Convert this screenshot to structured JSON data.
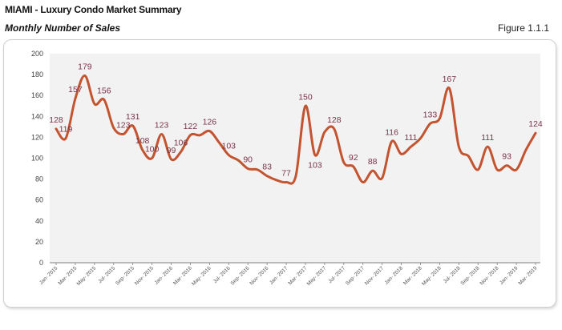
{
  "header": {
    "title": "MIAMI - Luxury Condo Market Summary",
    "subtitle": "Monthly Number of Sales",
    "figure": "Figure 1.1.1"
  },
  "chart_data": {
    "type": "line",
    "title": "Monthly Number of Sales",
    "xlabel": "",
    "ylabel": "",
    "ylim": [
      0,
      200
    ],
    "yticks": [
      0,
      20,
      40,
      60,
      80,
      100,
      120,
      140,
      160,
      180,
      200
    ],
    "grid": false,
    "line_color": "#c4532f",
    "label_color": "#7a3448",
    "plot_background": "#f2f2f2",
    "x_tick_labels": [
      "Jan- 2015",
      "Mar- 2015",
      "May- 2015",
      "Jul- 2015",
      "Sep- 2015",
      "Nov- 2015",
      "Jan- 2016",
      "Mar- 2016",
      "May- 2016",
      "Jul- 2016",
      "Sep- 2016",
      "Nov- 2016",
      "Jan- 2017",
      "Mar- 2017",
      "May- 2017",
      "Jul- 2017",
      "Sep- 2017",
      "Nov- 2017",
      "Jan- 2018",
      "Mar- 2018",
      "May- 2018",
      "Jul- 2018",
      "Sep- 2018",
      "Nov- 2018",
      "Jan- 2019",
      "Mar- 2019"
    ],
    "x": [
      "Jan-2015",
      "Feb-2015",
      "Mar-2015",
      "Apr-2015",
      "May-2015",
      "Jun-2015",
      "Jul-2015",
      "Aug-2015",
      "Sep-2015",
      "Oct-2015",
      "Nov-2015",
      "Dec-2015",
      "Jan-2016",
      "Feb-2016",
      "Mar-2016",
      "Apr-2016",
      "May-2016",
      "Jun-2016",
      "Jul-2016",
      "Aug-2016",
      "Sep-2016",
      "Oct-2016",
      "Nov-2016",
      "Dec-2016",
      "Jan-2017",
      "Feb-2017",
      "Mar-2017",
      "Apr-2017",
      "May-2017",
      "Jun-2017",
      "Jul-2017",
      "Aug-2017",
      "Sep-2017",
      "Oct-2017",
      "Nov-2017",
      "Dec-2017",
      "Jan-2018",
      "Feb-2018",
      "Mar-2018",
      "Apr-2018",
      "May-2018",
      "Jun-2018",
      "Jul-2018",
      "Aug-2018",
      "Sep-2018",
      "Oct-2018",
      "Nov-2018",
      "Dec-2018",
      "Jan-2019",
      "Feb-2019",
      "Mar-2019"
    ],
    "series": [
      {
        "values": [
          128,
          119,
          157,
          179,
          152,
          156,
          129,
          123,
          131,
          108,
          100,
          123,
          99,
          106,
          122,
          122,
          126,
          115,
          103,
          98,
          90,
          89,
          83,
          79,
          77,
          83,
          150,
          103,
          125,
          128,
          96,
          92,
          77,
          88,
          81,
          116,
          104,
          111,
          119,
          133,
          138,
          167,
          111,
          102,
          89,
          111,
          89,
          93,
          89,
          108,
          124
        ],
        "data_labels": [
          128,
          119,
          157,
          179,
          null,
          156,
          null,
          123,
          131,
          108,
          100,
          123,
          99,
          106,
          122,
          null,
          126,
          null,
          103,
          null,
          90,
          null,
          83,
          null,
          77,
          null,
          150,
          103,
          null,
          128,
          null,
          92,
          null,
          88,
          null,
          116,
          null,
          111,
          null,
          133,
          null,
          167,
          null,
          null,
          null,
          111,
          null,
          93,
          null,
          null,
          124
        ]
      }
    ]
  }
}
